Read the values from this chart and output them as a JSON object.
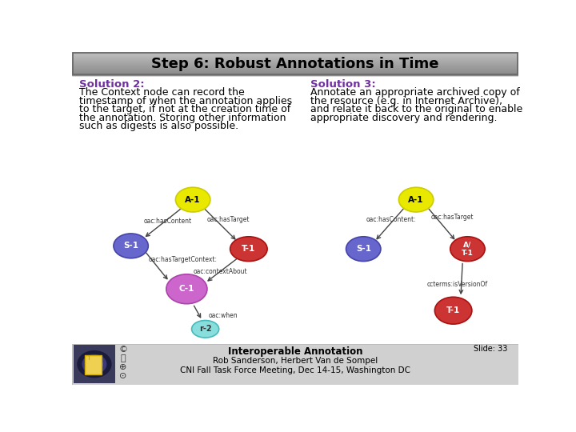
{
  "title": "Step 6: Robust Annotations in Time",
  "title_fontsize": 13,
  "title_color": "#000000",
  "bg_color": "#ffffff",
  "solution2_header": "Solution 2:",
  "solution3_header": "Solution 3:",
  "sol2_lines": [
    "The Context node can record the",
    "timestamp of when the annotation applies",
    "to the target, if not at the creation time of",
    "the annotation. Storing other information",
    "such as digests is also possible."
  ],
  "sol3_lines": [
    "Annotate an appropriate archived copy of",
    "the resource (e.g. in Internet Archive),",
    "and relate it back to the original to enable",
    "appropriate discovery and rendering."
  ],
  "header_color": "#7030a0",
  "body_color": "#000000",
  "footer_bold": "Interoperable Annotation",
  "footer_line2": "Rob Sanderson, Herbert Van de Sompel",
  "footer_line3": "CNI Fall Task Force Meeting, Dec 14-15, Washington DC",
  "slide_num": "Slide: 33",
  "node_yellow": "#e8e800",
  "node_yellow_edge": "#cccc00",
  "node_blue": "#6666cc",
  "node_blue_edge": "#4444aa",
  "node_red": "#cc3333",
  "node_red_edge": "#aa1111",
  "node_purple": "#cc66cc",
  "node_purple_edge": "#aa44aa",
  "node_cyan": "#88dddd",
  "node_cyan_edge": "#44bbbb",
  "arrow_color": "#444444",
  "label_color": "#333333",
  "title_bar_top": "#b8b8b8",
  "title_bar_bot": "#888888",
  "footer_bg": "#d0d0d0"
}
